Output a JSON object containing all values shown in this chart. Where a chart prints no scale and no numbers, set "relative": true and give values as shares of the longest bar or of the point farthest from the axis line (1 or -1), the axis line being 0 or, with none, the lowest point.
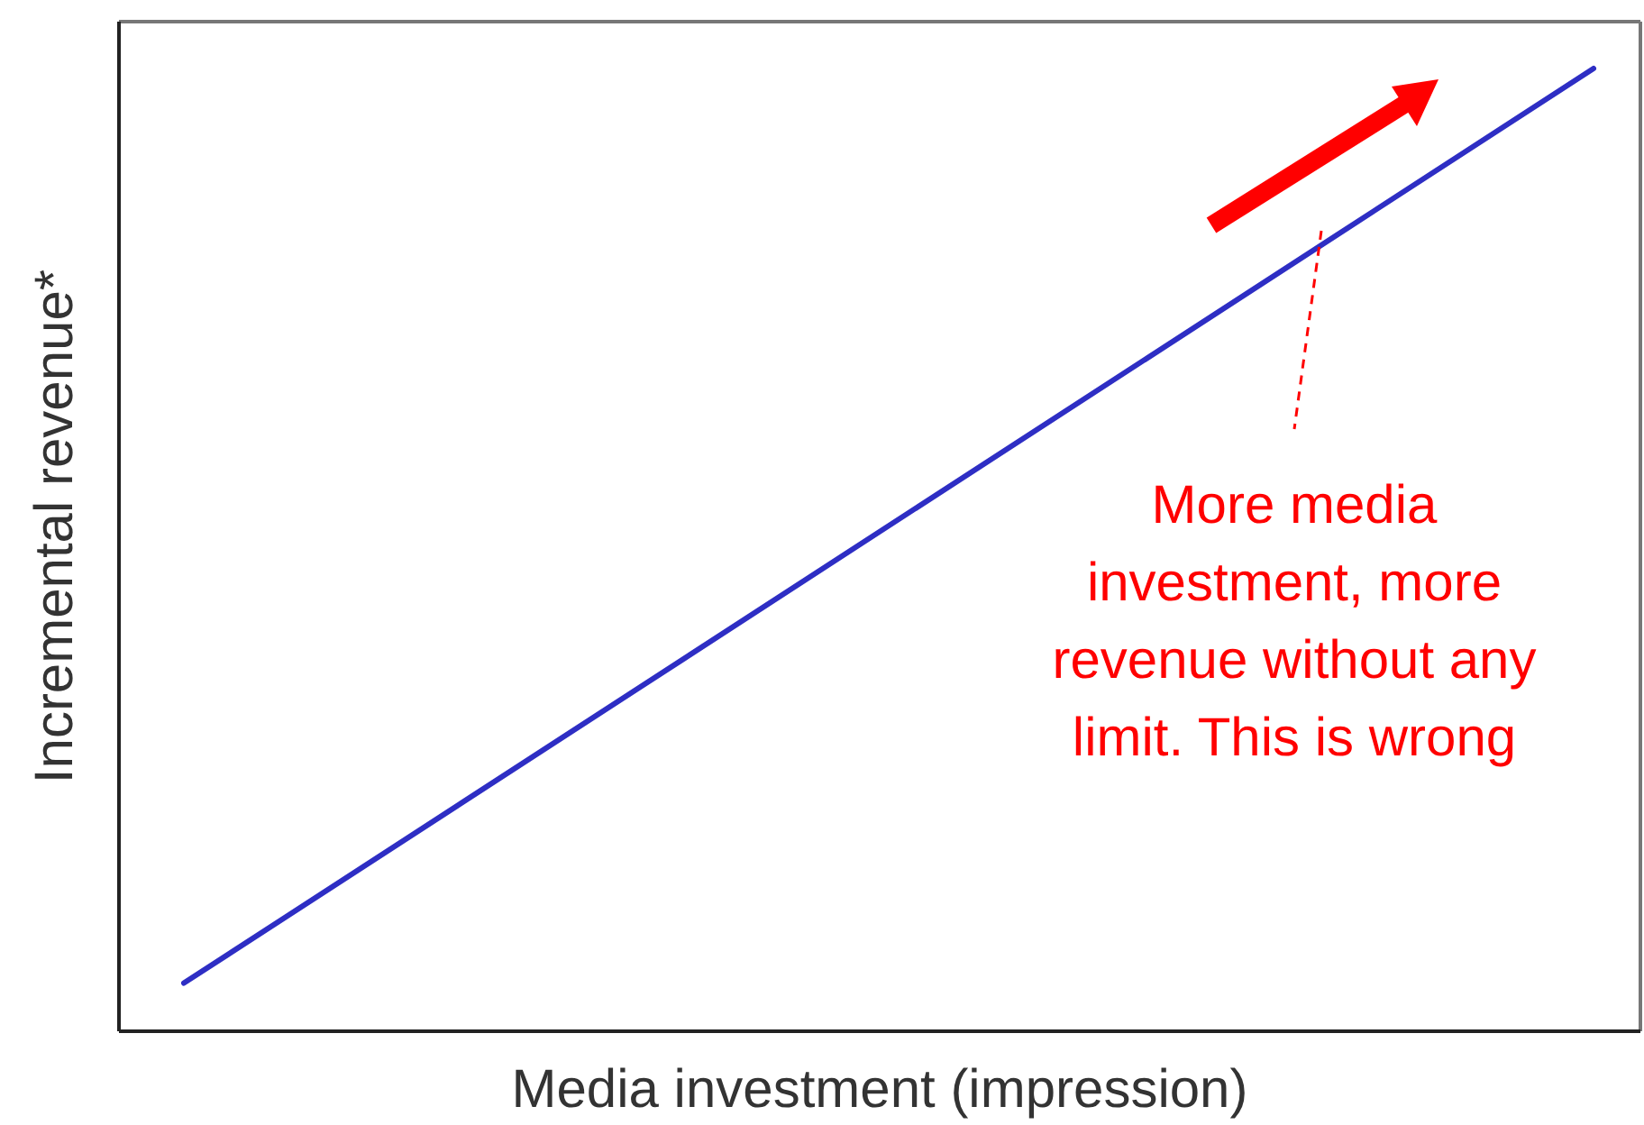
{
  "chart_data": {
    "type": "line",
    "relative": true,
    "xlabel": "Media investment (impression)",
    "ylabel": "Incremental revenue*",
    "categories": [
      null,
      null
    ],
    "series": [
      {
        "color": "#2e2ec4",
        "values": [
          0.05,
          1
        ]
      }
    ],
    "annotations": [
      "More media investment, more revenue without any limit. This is wrong"
    ],
    "marker": "none",
    "line_style": "solid"
  }
}
